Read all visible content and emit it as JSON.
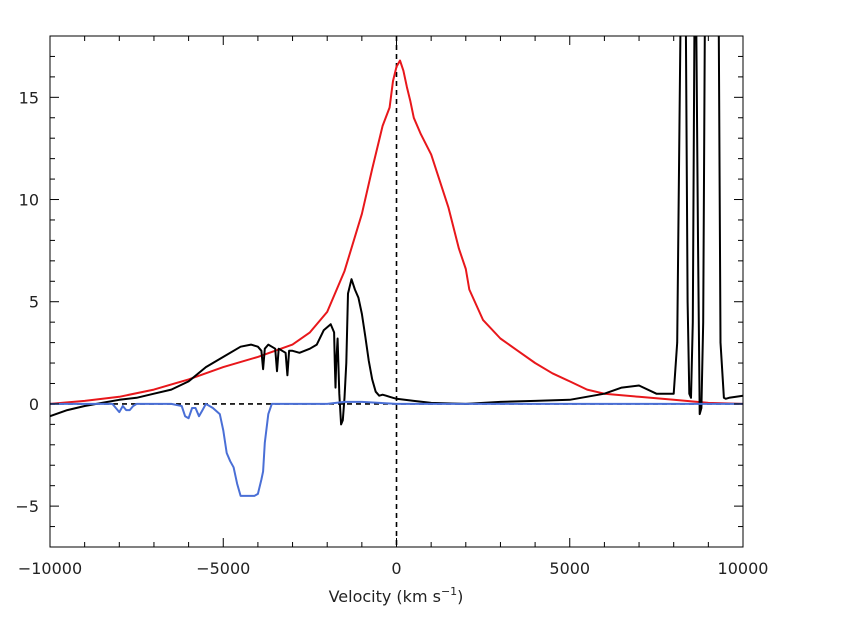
{
  "chart_data": {
    "type": "line",
    "title": "",
    "xlabel": "Velocity (km s",
    "xlabel_sup": "−1",
    "xlabel_close": ")",
    "ylabel": "",
    "xlim": [
      -10000,
      10000
    ],
    "ylim": [
      -7,
      18
    ],
    "x_ticks": [
      -10000,
      -5000,
      0,
      5000,
      10000
    ],
    "x_tick_labels": [
      "−10000",
      "−5000",
      "0",
      "5000",
      "10000"
    ],
    "y_ticks": [
      -5,
      0,
      5,
      10,
      15
    ],
    "y_tick_labels": [
      "−5",
      "0",
      "5",
      "10",
      "15"
    ],
    "grid": false,
    "legend": "none",
    "reference_lines": [
      {
        "orientation": "horizontal",
        "value": 0,
        "style": "dashed",
        "color": "#000000"
      },
      {
        "orientation": "vertical",
        "value": 0,
        "style": "dashed",
        "color": "#000000"
      }
    ],
    "series": [
      {
        "color": "#e8171b",
        "x": [
          -10000,
          -9000,
          -8000,
          -7000,
          -6000,
          -5000,
          -4000,
          -3000,
          -2500,
          -2000,
          -1500,
          -1000,
          -700,
          -400,
          -200,
          -100,
          0,
          100,
          200,
          300,
          400,
          500,
          700,
          1000,
          1500,
          1800,
          2000,
          2100,
          2500,
          3000,
          3500,
          4000,
          4500,
          5000,
          5500,
          6000,
          7000,
          8000,
          9000,
          10000
        ],
        "values": [
          0,
          0.15,
          0.35,
          0.7,
          1.2,
          1.8,
          2.3,
          2.9,
          3.5,
          4.5,
          6.5,
          9.3,
          11.5,
          13.6,
          14.5,
          15.8,
          16.5,
          16.8,
          16.3,
          15.5,
          14.8,
          14.0,
          13.2,
          12.2,
          9.6,
          7.6,
          6.6,
          5.6,
          4.1,
          3.2,
          2.6,
          2.0,
          1.5,
          1.1,
          0.7,
          0.5,
          0.35,
          0.2,
          0.05,
          0
        ]
      },
      {
        "color": "#000000",
        "x": [
          -10000,
          -9500,
          -9000,
          -8500,
          -8000,
          -7500,
          -7000,
          -6500,
          -6000,
          -5500,
          -5000,
          -4500,
          -4200,
          -4000,
          -3900,
          -3850,
          -3800,
          -3700,
          -3600,
          -3500,
          -3450,
          -3400,
          -3300,
          -3200,
          -3150,
          -3100,
          -3000,
          -2800,
          -2500,
          -2300,
          -2100,
          -1900,
          -1800,
          -1780,
          -1760,
          -1740,
          -1700,
          -1650,
          -1600,
          -1550,
          -1500,
          -1450,
          -1400,
          -1300,
          -1200,
          -1100,
          -1000,
          -900,
          -800,
          -700,
          -600,
          -500,
          -400,
          -300,
          -200,
          -100,
          0,
          500,
          1000,
          2000,
          3000,
          4000,
          5000,
          6000,
          6500,
          7000,
          7500,
          8000,
          8100,
          8200,
          8250,
          8350,
          8400,
          8450,
          8500,
          8550,
          8600,
          8650,
          8700,
          8750,
          8800,
          8850,
          8900,
          8950,
          9000,
          9100,
          9200,
          9300,
          9350,
          9450,
          9500,
          9600,
          9800,
          10000
        ],
        "values": [
          -0.6,
          -0.3,
          -0.1,
          0.05,
          0.2,
          0.3,
          0.5,
          0.7,
          1.1,
          1.8,
          2.3,
          2.8,
          2.9,
          2.8,
          2.6,
          1.7,
          2.7,
          2.9,
          2.8,
          2.7,
          1.6,
          2.7,
          2.6,
          2.5,
          1.4,
          2.6,
          2.6,
          2.5,
          2.7,
          2.9,
          3.6,
          3.9,
          3.5,
          2.0,
          0.8,
          2.0,
          3.2,
          0.5,
          -1.0,
          -0.8,
          0.3,
          2.0,
          5.4,
          6.1,
          5.6,
          5.2,
          4.4,
          3.3,
          2.1,
          1.2,
          0.6,
          0.4,
          0.45,
          0.4,
          0.35,
          0.3,
          0.25,
          0.15,
          0.05,
          0.0,
          0.1,
          0.15,
          0.2,
          0.5,
          0.8,
          0.9,
          0.5,
          0.5,
          3.0,
          19,
          19,
          19,
          5,
          0.5,
          0.3,
          4,
          19,
          19,
          8,
          -0.5,
          -0.2,
          4,
          19,
          19,
          19,
          19,
          19,
          19,
          3,
          0.3,
          0.25,
          0.3,
          0.35,
          0.4
        ]
      },
      {
        "color": "#4a6fd6",
        "x": [
          -10000,
          -9000,
          -8200,
          -8000,
          -7900,
          -7800,
          -7700,
          -7600,
          -7500,
          -7000,
          -6500,
          -6200,
          -6100,
          -6000,
          -5900,
          -5800,
          -5700,
          -5600,
          -5500,
          -5300,
          -5100,
          -5000,
          -4900,
          -4800,
          -4700,
          -4600,
          -4500,
          -4300,
          -4100,
          -4000,
          -3900,
          -3850,
          -3800,
          -3700,
          -3600,
          -3000,
          -2000,
          -1500,
          -1000,
          -500,
          0,
          1000,
          2000,
          3000,
          4000,
          5000,
          6000,
          7000,
          8000,
          9000,
          10000
        ],
        "values": [
          0,
          0,
          0,
          -0.4,
          -0.1,
          -0.3,
          -0.3,
          -0.1,
          0,
          0,
          0,
          -0.1,
          -0.6,
          -0.7,
          -0.2,
          -0.2,
          -0.6,
          -0.3,
          0,
          -0.2,
          -0.5,
          -1.3,
          -2.4,
          -2.8,
          -3.1,
          -3.9,
          -4.5,
          -4.5,
          -4.5,
          -4.4,
          -3.7,
          -3.3,
          -1.9,
          -0.5,
          0,
          0,
          0,
          0.1,
          0.1,
          0.05,
          0,
          0,
          0,
          0,
          0,
          0,
          0,
          0,
          0,
          0,
          0
        ]
      }
    ]
  }
}
